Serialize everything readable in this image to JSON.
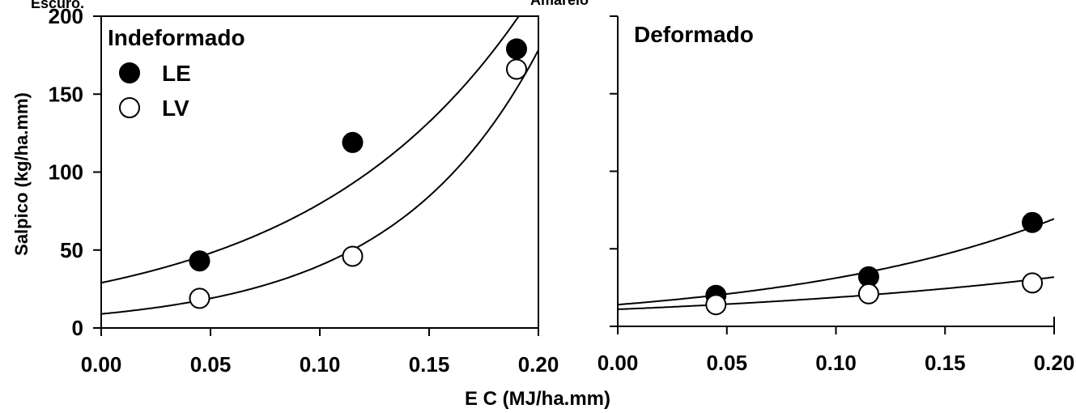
{
  "figure": {
    "ylabel": "Salpico (kg/ha.mm)",
    "xlabel": "E C (MJ/ha.mm)",
    "top_cropped_text": [
      "Escuro.",
      "Amarelo"
    ]
  },
  "colors": {
    "axis": "#000000",
    "filled_marker": "#000000",
    "open_marker_fill": "#ffffff",
    "curve": "#000000"
  },
  "chart_data": [
    {
      "type": "scatter",
      "title": "Indeformado",
      "xlim": [
        0.0,
        0.2
      ],
      "ylim": [
        0,
        200
      ],
      "xticks": [
        "0.00",
        "0.05",
        "0.10",
        "0.15",
        "0.20"
      ],
      "yticks": [
        "0",
        "50",
        "100",
        "150",
        "200"
      ],
      "legend": {
        "position": "top-left",
        "entries": [
          {
            "name": "LE",
            "marker": "filled-circle"
          },
          {
            "name": "LV",
            "marker": "open-circle"
          }
        ]
      },
      "series": [
        {
          "name": "LE",
          "marker": "filled",
          "x": [
            0.045,
            0.115,
            0.19
          ],
          "y": [
            43,
            119,
            179
          ],
          "fit": {
            "type": "exponential",
            "a": 29,
            "b": 10.11
          }
        },
        {
          "name": "LV",
          "marker": "open",
          "x": [
            0.045,
            0.115,
            0.19
          ],
          "y": [
            19,
            46,
            166
          ],
          "fit": {
            "type": "exponential",
            "a": 9,
            "b": 14.93
          }
        }
      ]
    },
    {
      "type": "scatter",
      "title": "Deformado",
      "xlim": [
        0.0,
        0.2
      ],
      "ylim": [
        0,
        200
      ],
      "xticks": [
        "0.00",
        "0.05",
        "0.10",
        "0.15",
        "0.20"
      ],
      "yticks": [],
      "series": [
        {
          "name": "LE",
          "marker": "filled",
          "x": [
            0.045,
            0.115,
            0.19
          ],
          "y": [
            20,
            32,
            67
          ],
          "fit": {
            "type": "exponential",
            "a": 14,
            "b": 8.0
          }
        },
        {
          "name": "LV",
          "marker": "open",
          "x": [
            0.045,
            0.115,
            0.19
          ],
          "y": [
            14,
            21,
            28
          ],
          "fit": {
            "type": "exponential",
            "a": 11,
            "b": 5.3
          }
        }
      ]
    }
  ]
}
